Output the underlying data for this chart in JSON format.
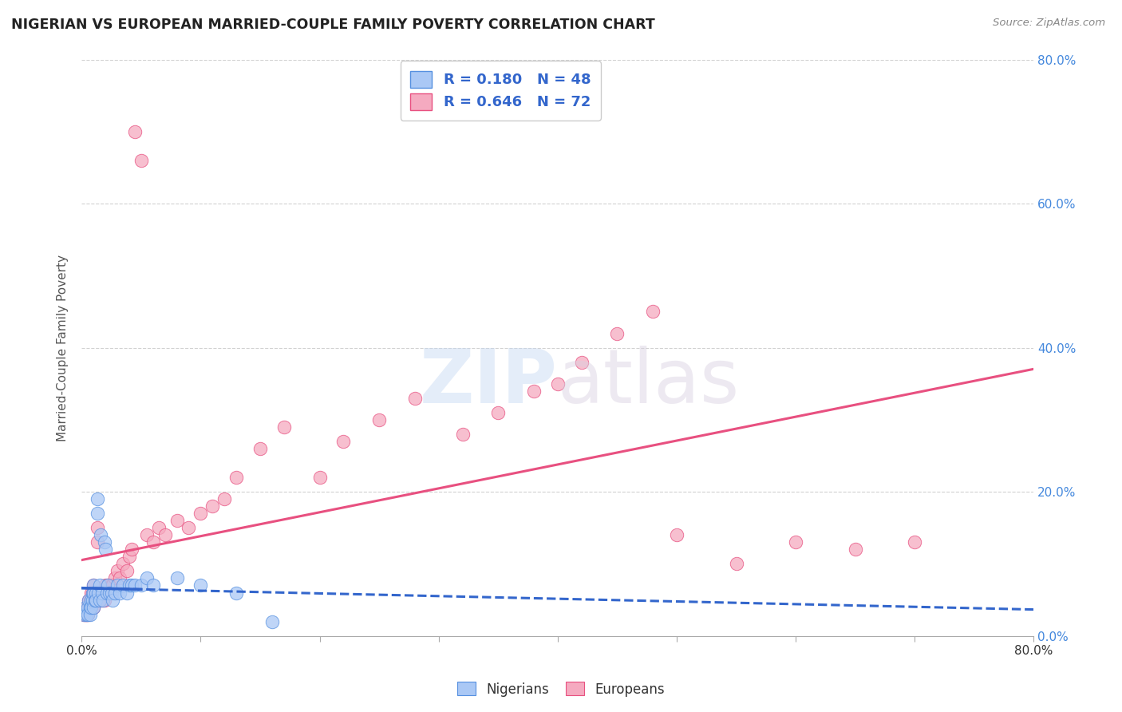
{
  "title": "NIGERIAN VS EUROPEAN MARRIED-COUPLE FAMILY POVERTY CORRELATION CHART",
  "source": "Source: ZipAtlas.com",
  "ylabel": "Married-Couple Family Poverty",
  "xlim": [
    0,
    0.8
  ],
  "ylim": [
    0,
    0.8
  ],
  "xtick_positions": [
    0.0,
    0.1,
    0.2,
    0.3,
    0.4,
    0.5,
    0.6,
    0.7,
    0.8
  ],
  "xtick_edge_labels_pos": [
    0.0,
    0.8
  ],
  "xtick_edge_labels": [
    "0.0%",
    "80.0%"
  ],
  "ytick_positions": [
    0.0,
    0.2,
    0.4,
    0.6,
    0.8
  ],
  "ytick_labels": [
    "0.0%",
    "20.0%",
    "40.0%",
    "60.0%",
    "80.0%"
  ],
  "nigerian_color": "#aac8f5",
  "european_color": "#f5aac0",
  "nigerian_edge_color": "#5590e0",
  "european_edge_color": "#e85080",
  "nigerian_line_color": "#3366cc",
  "european_line_color": "#e85080",
  "nigerian_R": 0.18,
  "nigerian_N": 48,
  "european_R": 0.646,
  "european_N": 72,
  "legend_label_nigerian": "Nigerians",
  "legend_label_european": "Europeans",
  "nigerian_x": [
    0.002,
    0.003,
    0.004,
    0.005,
    0.005,
    0.006,
    0.007,
    0.007,
    0.008,
    0.008,
    0.009,
    0.009,
    0.01,
    0.01,
    0.01,
    0.011,
    0.012,
    0.012,
    0.013,
    0.013,
    0.014,
    0.015,
    0.015,
    0.016,
    0.017,
    0.018,
    0.019,
    0.02,
    0.021,
    0.022,
    0.023,
    0.025,
    0.026,
    0.028,
    0.03,
    0.032,
    0.035,
    0.038,
    0.04,
    0.042,
    0.045,
    0.05,
    0.055,
    0.06,
    0.08,
    0.1,
    0.13,
    0.16
  ],
  "nigerian_y": [
    0.03,
    0.04,
    0.03,
    0.04,
    0.03,
    0.05,
    0.04,
    0.03,
    0.05,
    0.04,
    0.06,
    0.05,
    0.07,
    0.06,
    0.04,
    0.05,
    0.06,
    0.05,
    0.19,
    0.17,
    0.06,
    0.07,
    0.05,
    0.14,
    0.06,
    0.05,
    0.13,
    0.12,
    0.06,
    0.07,
    0.06,
    0.06,
    0.05,
    0.06,
    0.07,
    0.06,
    0.07,
    0.06,
    0.07,
    0.07,
    0.07,
    0.07,
    0.08,
    0.07,
    0.08,
    0.07,
    0.06,
    0.02
  ],
  "european_x": [
    0.002,
    0.003,
    0.004,
    0.004,
    0.005,
    0.005,
    0.006,
    0.006,
    0.007,
    0.007,
    0.008,
    0.008,
    0.009,
    0.009,
    0.01,
    0.01,
    0.01,
    0.011,
    0.012,
    0.012,
    0.013,
    0.013,
    0.014,
    0.015,
    0.015,
    0.016,
    0.017,
    0.018,
    0.019,
    0.02,
    0.021,
    0.022,
    0.023,
    0.025,
    0.026,
    0.028,
    0.03,
    0.032,
    0.035,
    0.038,
    0.04,
    0.042,
    0.045,
    0.05,
    0.055,
    0.06,
    0.065,
    0.07,
    0.08,
    0.09,
    0.1,
    0.11,
    0.12,
    0.13,
    0.15,
    0.17,
    0.2,
    0.22,
    0.25,
    0.28,
    0.32,
    0.35,
    0.38,
    0.4,
    0.42,
    0.45,
    0.48,
    0.5,
    0.55,
    0.6,
    0.65,
    0.7
  ],
  "european_y": [
    0.03,
    0.03,
    0.04,
    0.03,
    0.04,
    0.03,
    0.05,
    0.04,
    0.05,
    0.04,
    0.06,
    0.05,
    0.06,
    0.05,
    0.07,
    0.06,
    0.04,
    0.05,
    0.06,
    0.05,
    0.15,
    0.13,
    0.05,
    0.06,
    0.05,
    0.06,
    0.05,
    0.06,
    0.05,
    0.07,
    0.06,
    0.07,
    0.06,
    0.07,
    0.07,
    0.08,
    0.09,
    0.08,
    0.1,
    0.09,
    0.11,
    0.12,
    0.7,
    0.66,
    0.14,
    0.13,
    0.15,
    0.14,
    0.16,
    0.15,
    0.17,
    0.18,
    0.19,
    0.22,
    0.26,
    0.29,
    0.22,
    0.27,
    0.3,
    0.33,
    0.28,
    0.31,
    0.34,
    0.35,
    0.38,
    0.42,
    0.45,
    0.14,
    0.1,
    0.13,
    0.12,
    0.13
  ]
}
